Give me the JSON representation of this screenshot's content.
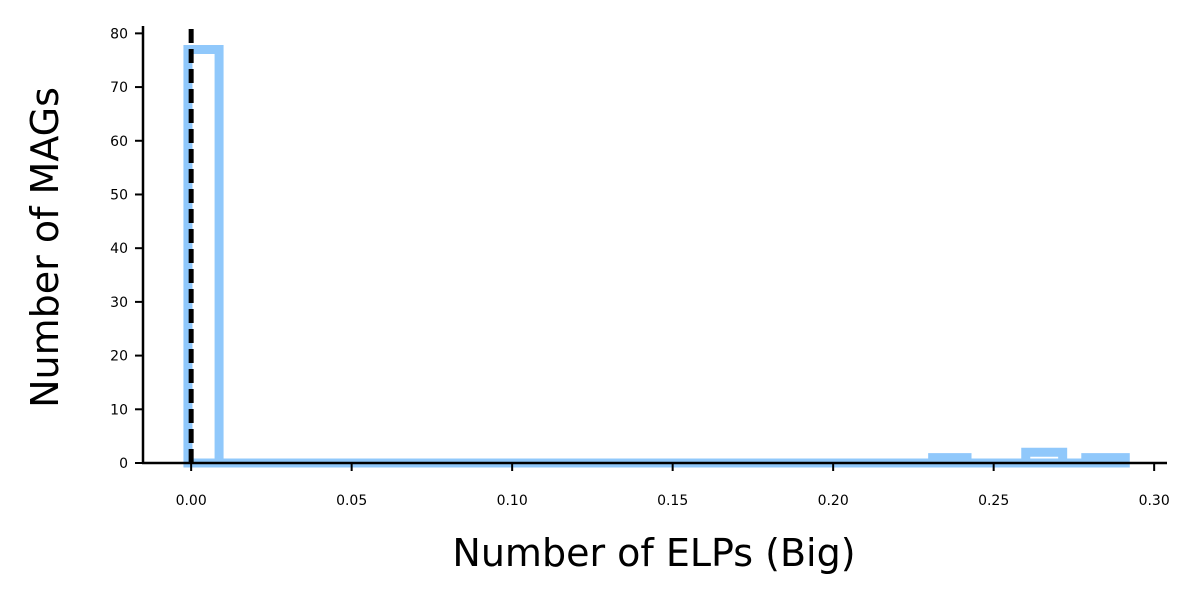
{
  "chart_data": {
    "type": "histogram",
    "title": "",
    "xlabel": "Number of ELPs (Big)",
    "ylabel": "Number of MAGs",
    "xlim": [
      -0.015,
      0.304
    ],
    "ylim": [
      0,
      81
    ],
    "xticks": [
      "0.00",
      "0.05",
      "0.10",
      "0.15",
      "0.20",
      "0.25",
      "0.30"
    ],
    "yticks": [
      "0",
      "10",
      "20",
      "30",
      "40",
      "50",
      "60",
      "70",
      "80"
    ],
    "grid": false,
    "histtype": "step",
    "bins": [
      {
        "x0": -0.001,
        "x1": 0.0087,
        "count": 77
      },
      {
        "x0": 0.0087,
        "x1": 0.231,
        "count": 0
      },
      {
        "x0": 0.231,
        "x1": 0.2417,
        "count": 1
      },
      {
        "x0": 0.2417,
        "x1": 0.26,
        "count": 0
      },
      {
        "x0": 0.26,
        "x1": 0.2715,
        "count": 2
      },
      {
        "x0": 0.2715,
        "x1": 0.2787,
        "count": 0
      },
      {
        "x0": 0.2787,
        "x1": 0.291,
        "count": 1
      }
    ],
    "reference_line": {
      "x": 0.0,
      "style": "dashed"
    },
    "colors": {
      "histogram": "#90c8fb",
      "reference_line": "#000000",
      "axes": "#000000"
    }
  }
}
